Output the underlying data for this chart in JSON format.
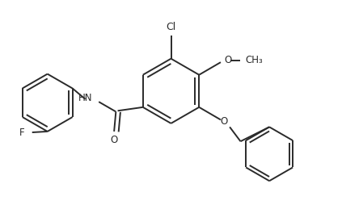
{
  "background": "#ffffff",
  "line_color": "#2a2a2a",
  "line_width": 1.4,
  "text_color": "#2a2a2a",
  "font_size": 8.5,
  "xlim": [
    -1.6,
    1.8
  ],
  "ylim": [
    -1.25,
    1.05
  ]
}
